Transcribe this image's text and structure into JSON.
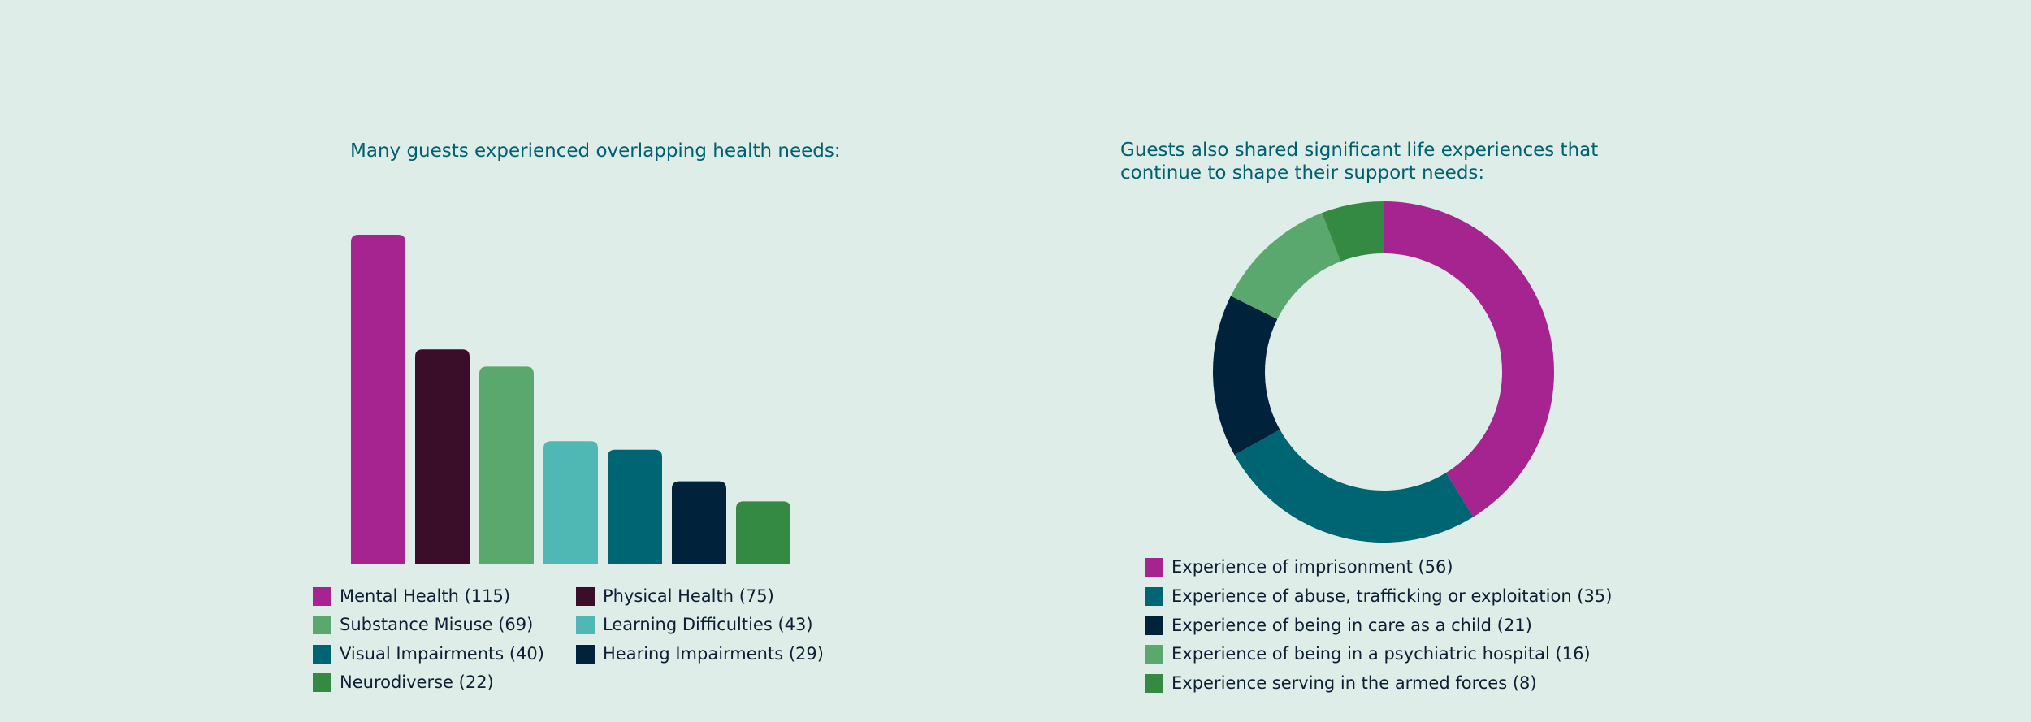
{
  "chart_data": [
    {
      "type": "bar",
      "title": "Many guests experienced overlapping health needs:",
      "categories": [
        "Mental Health",
        "Physical Health",
        "Substance Misuse",
        "Learning Difficulties",
        "Visual Impairments",
        "Hearing Impairments",
        "Neurodiverse"
      ],
      "values": [
        115,
        75,
        69,
        43,
        40,
        29,
        22
      ],
      "colors": [
        "#a52490",
        "#3a0d29",
        "#5aa86e",
        "#50b8b4",
        "#006572",
        "#00223a",
        "#358a43"
      ],
      "legend_labels": [
        "Mental Health  (115)",
        "Physical Health  (75)",
        "Substance Misuse (69)",
        "Learning Difficulties (43)",
        "Visual Impairments (40)",
        "Hearing Impairments (29)",
        "Neurodiverse (22)"
      ],
      "ylim": [
        0,
        115
      ],
      "xlabel": "",
      "ylabel": "",
      "grid": false
    },
    {
      "type": "pie",
      "title": "Guests also shared significant life experiences that continue to shape their support needs:",
      "categories": [
        "Experience of imprisonment",
        "Experience of abuse, trafficking or exploitation",
        "Experience of being in care as a child",
        "Experience of being in a psychiatric hospital",
        "Experience serving in the armed forces"
      ],
      "values": [
        56,
        35,
        21,
        16,
        8
      ],
      "colors": [
        "#a52490",
        "#006572",
        "#00223a",
        "#5aa86e",
        "#358a43"
      ],
      "legend_labels": [
        "Experience of imprisonment (56)",
        "Experience of abuse, trafficking or exploitation (35)",
        "Experience of being in care as a child (21)",
        "Experience of being in a psychiatric hospital (16)",
        "Experience serving in the armed forces (8)"
      ],
      "legend": "bottom"
    }
  ]
}
